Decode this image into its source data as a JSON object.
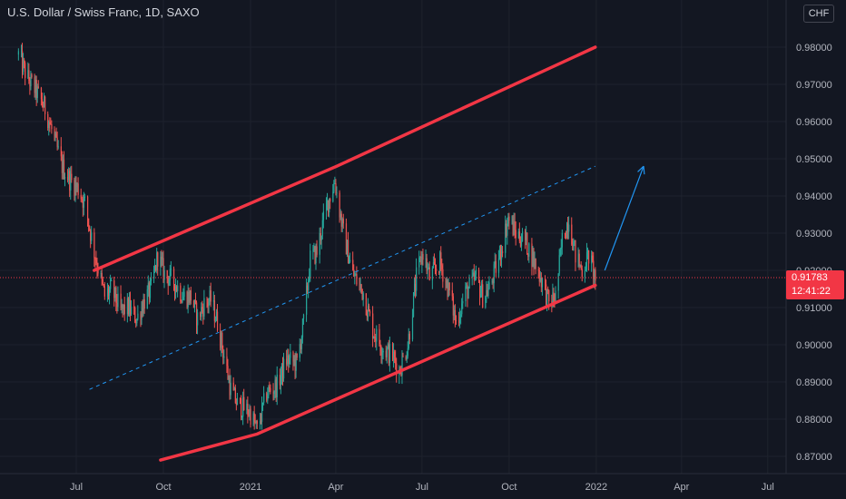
{
  "header": {
    "title": "U.S. Dollar / Swiss Franc, 1D, SAXO",
    "currency": "CHF"
  },
  "price_tag": {
    "value": "0.91783",
    "countdown": "12:41:22"
  },
  "colors": {
    "background": "#131722",
    "up": "#26a69a",
    "down": "#ef5350",
    "channel": "#f23645",
    "midline": "#2196f3",
    "text": "#b2b5be"
  },
  "chart_data": {
    "type": "candlestick",
    "symbol": "USDCHF",
    "interval": "1D",
    "y_ticks": [
      "0.98000",
      "0.97000",
      "0.96000",
      "0.95000",
      "0.94000",
      "0.93000",
      "0.92000",
      "0.91000",
      "0.90000",
      "0.89000",
      "0.88000",
      "0.87000"
    ],
    "x_ticks": [
      "Jul",
      "Oct",
      "2021",
      "Apr",
      "Jul",
      "Oct",
      "2022",
      "Apr",
      "Jul"
    ],
    "last_price": 0.91783,
    "price_path": [
      [
        "2020-05-01",
        0.978
      ],
      [
        "2020-05-10",
        0.972
      ],
      [
        "2020-05-20",
        0.968
      ],
      [
        "2020-05-30",
        0.963
      ],
      [
        "2020-06-08",
        0.955
      ],
      [
        "2020-06-16",
        0.948
      ],
      [
        "2020-06-25",
        0.944
      ],
      [
        "2020-07-03",
        0.942
      ],
      [
        "2020-07-10",
        0.938
      ],
      [
        "2020-07-20",
        0.925
      ],
      [
        "2020-07-31",
        0.913
      ],
      [
        "2020-08-07",
        0.915
      ],
      [
        "2020-08-17",
        0.909
      ],
      [
        "2020-08-25",
        0.91
      ],
      [
        "2020-09-03",
        0.907
      ],
      [
        "2020-09-11",
        0.912
      ],
      [
        "2020-09-18",
        0.915
      ],
      [
        "2020-09-25",
        0.924
      ],
      [
        "2020-10-02",
        0.919
      ],
      [
        "2020-10-12",
        0.917
      ],
      [
        "2020-10-22",
        0.913
      ],
      [
        "2020-10-30",
        0.913
      ],
      [
        "2020-11-06",
        0.907
      ],
      [
        "2020-11-13",
        0.911
      ],
      [
        "2020-11-20",
        0.912
      ],
      [
        "2020-11-27",
        0.906
      ],
      [
        "2020-12-04",
        0.897
      ],
      [
        "2020-12-11",
        0.888
      ],
      [
        "2020-12-18",
        0.884
      ],
      [
        "2020-12-31",
        0.882
      ],
      [
        "2021-01-08",
        0.877
      ],
      [
        "2021-01-18",
        0.887
      ],
      [
        "2021-01-29",
        0.889
      ],
      [
        "2021-02-08",
        0.896
      ],
      [
        "2021-02-19",
        0.895
      ],
      [
        "2021-02-26",
        0.906
      ],
      [
        "2021-03-05",
        0.923
      ],
      [
        "2021-03-12",
        0.925
      ],
      [
        "2021-03-22",
        0.937
      ],
      [
        "2021-03-31",
        0.944
      ],
      [
        "2021-04-09",
        0.93
      ],
      [
        "2021-04-19",
        0.919
      ],
      [
        "2021-04-30",
        0.914
      ],
      [
        "2021-05-10",
        0.904
      ],
      [
        "2021-05-21",
        0.899
      ],
      [
        "2021-05-31",
        0.897
      ],
      [
        "2021-06-07",
        0.893
      ],
      [
        "2021-06-16",
        0.9
      ],
      [
        "2021-06-25",
        0.918
      ],
      [
        "2021-07-02",
        0.925
      ],
      [
        "2021-07-09",
        0.918
      ],
      [
        "2021-07-20",
        0.922
      ],
      [
        "2021-07-30",
        0.914
      ],
      [
        "2021-08-06",
        0.906
      ],
      [
        "2021-08-16",
        0.914
      ],
      [
        "2021-08-27",
        0.918
      ],
      [
        "2021-09-03",
        0.913
      ],
      [
        "2021-09-10",
        0.915
      ],
      [
        "2021-09-20",
        0.923
      ],
      [
        "2021-09-30",
        0.934
      ],
      [
        "2021-10-08",
        0.93
      ],
      [
        "2021-10-18",
        0.928
      ],
      [
        "2021-10-28",
        0.922
      ],
      [
        "2021-11-05",
        0.917
      ],
      [
        "2021-11-12",
        0.911
      ],
      [
        "2021-11-19",
        0.913
      ],
      [
        "2021-11-26",
        0.928
      ],
      [
        "2021-12-03",
        0.934
      ],
      [
        "2021-12-10",
        0.924
      ],
      [
        "2021-12-17",
        0.92
      ],
      [
        "2021-12-24",
        0.924
      ],
      [
        "2021-12-31",
        0.918
      ]
    ],
    "trend_channel": {
      "upper": [
        [
          "2020-07-20",
          0.92
        ],
        [
          "2021-04-02",
          0.948
        ],
        [
          "2021-12-31",
          0.98
        ]
      ],
      "lower": [
        [
          "2020-09-28",
          0.869
        ],
        [
          "2021-01-08",
          0.876
        ],
        [
          "2021-12-31",
          0.916
        ]
      ],
      "midline": [
        [
          "2020-07-15",
          0.888
        ],
        [
          "2021-12-31",
          0.948
        ]
      ]
    },
    "projection_arrow": [
      [
        "2022-01-10",
        0.92
      ],
      [
        "2022-02-20",
        0.948
      ]
    ]
  }
}
